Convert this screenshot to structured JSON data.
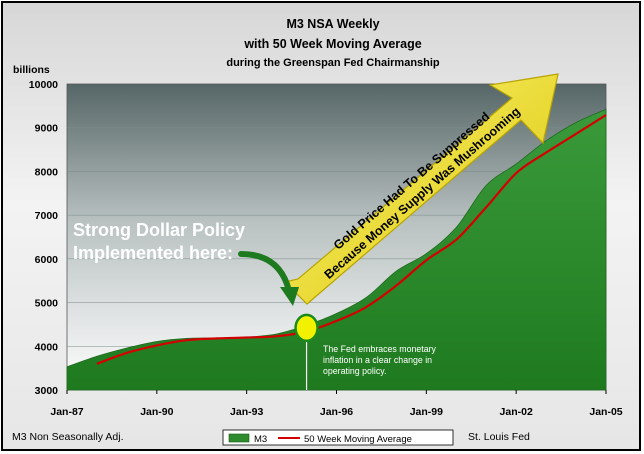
{
  "chart_data": {
    "type": "area",
    "title_lines": [
      "M3 NSA Weekly",
      "with 50 Week Moving Average",
      "during the Greenspan Fed Chairmanship"
    ],
    "y_unit_label": "billions",
    "y_ticks": [
      "10000",
      "9000",
      "8000",
      "7000",
      "6000",
      "5000",
      "4000",
      "3000"
    ],
    "x_ticks": [
      "Jan-87",
      "Jan-90",
      "Jan-93",
      "Jan-96",
      "Jan-99",
      "Jan-02",
      "Jan-05"
    ],
    "ylim": [
      3000,
      10000
    ],
    "xlim": [
      1987.0,
      2005.0
    ],
    "source_left": "M3 Non Seasonally Adj.",
    "source_right": "St. Louis Fed",
    "legend": [
      {
        "label": "M3",
        "kind": "area",
        "color": "#2e8b2e"
      },
      {
        "label": "50 Week Moving Average",
        "kind": "line",
        "color": "#d40000"
      }
    ],
    "series": [
      {
        "name": "M3",
        "x": [
          1987.0,
          1988.0,
          1989.0,
          1990.0,
          1991.0,
          1992.0,
          1993.0,
          1994.0,
          1995.0,
          1996.0,
          1997.0,
          1998.0,
          1999.0,
          2000.0,
          2001.0,
          2002.0,
          2003.0,
          2004.0,
          2005.0
        ],
        "values": [
          3530,
          3770,
          3960,
          4110,
          4180,
          4190,
          4210,
          4280,
          4480,
          4750,
          5120,
          5720,
          6120,
          6720,
          7680,
          8170,
          8700,
          9120,
          9420
        ]
      },
      {
        "name": "50 Week Moving Average",
        "x": [
          1988.0,
          1989.0,
          1990.0,
          1991.0,
          1992.0,
          1993.0,
          1994.0,
          1995.0,
          1996.0,
          1997.0,
          1998.0,
          1999.0,
          2000.0,
          2001.0,
          2002.0,
          2003.0,
          2004.0,
          2005.0
        ],
        "values": [
          3600,
          3850,
          4020,
          4140,
          4180,
          4200,
          4230,
          4340,
          4580,
          4900,
          5390,
          5970,
          6440,
          7180,
          7960,
          8430,
          8860,
          9290
        ]
      }
    ],
    "annotations": {
      "strong_dollar": [
        "Strong Dollar Policy",
        "Implemented here:"
      ],
      "arrow_text": [
        "Gold Price Had To Be Suppressed",
        "Because Money Supply Was Mushrooming"
      ],
      "fed_note": [
        "The Fed embraces monetary",
        "inflation in a clear change in",
        "operating policy."
      ],
      "marker": {
        "x": 1995.0,
        "y": 4420,
        "color": "#f2f200"
      }
    },
    "colors": {
      "plot_bg_top": "#5a6a6a",
      "plot_bg_bottom": "#ffffff",
      "area": "#2e8b2e",
      "ma_line": "#d40000",
      "arrow": "#f0e020"
    }
  }
}
